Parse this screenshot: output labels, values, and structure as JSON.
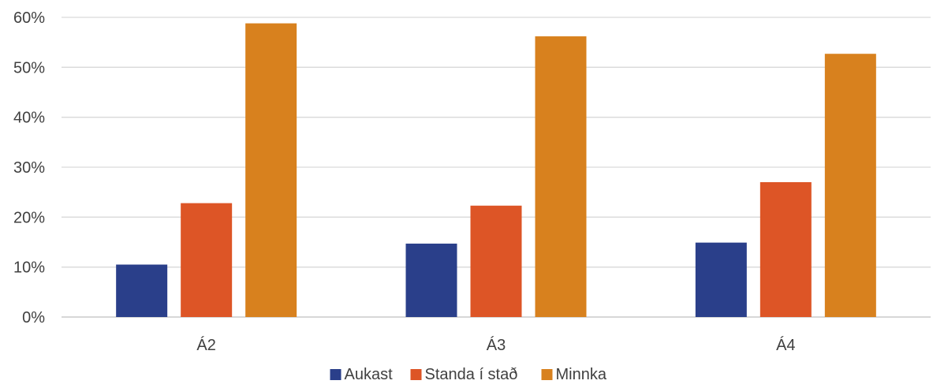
{
  "chart_data": {
    "type": "bar",
    "categories": [
      "Á2",
      "Á3",
      "Á4"
    ],
    "series": [
      {
        "name": "Aukast",
        "color": "#2a3f8a",
        "values": [
          10.5,
          14.7,
          14.9
        ]
      },
      {
        "name": "Standa í stað",
        "color": "#dd5526",
        "values": [
          22.8,
          22.3,
          27.0
        ]
      },
      {
        "name": "Minnka",
        "color": "#d8811e",
        "values": [
          58.8,
          56.2,
          52.7
        ]
      }
    ],
    "ylim": [
      0,
      60
    ],
    "yticks": [
      "0%",
      "10%",
      "20%",
      "30%",
      "40%",
      "50%",
      "60%"
    ],
    "grid": true,
    "legend_position": "bottom",
    "title": "",
    "xlabel": "",
    "ylabel": ""
  }
}
